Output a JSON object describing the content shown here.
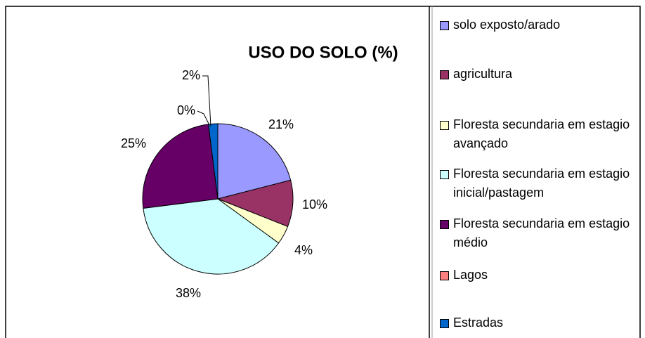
{
  "chart_data": {
    "type": "pie",
    "title": "USO DO SOLO (%)",
    "categories": [
      "solo exposto/arado",
      "agricultura",
      "Floresta secundaria em estagio avançado",
      "Floresta secundaria em estagio inicial/pastagem",
      "Floresta secundaria em estagio médio",
      "Lagos",
      "Estradas"
    ],
    "values": [
      21,
      10,
      4,
      38,
      25,
      0,
      2
    ],
    "value_labels": [
      "21%",
      "10%",
      "4%",
      "38%",
      "25%",
      "0%",
      "2%"
    ],
    "colors": [
      "#9999ff",
      "#993366",
      "#ffffcc",
      "#ccffff",
      "#660066",
      "#ff8080",
      "#0066cc"
    ]
  }
}
